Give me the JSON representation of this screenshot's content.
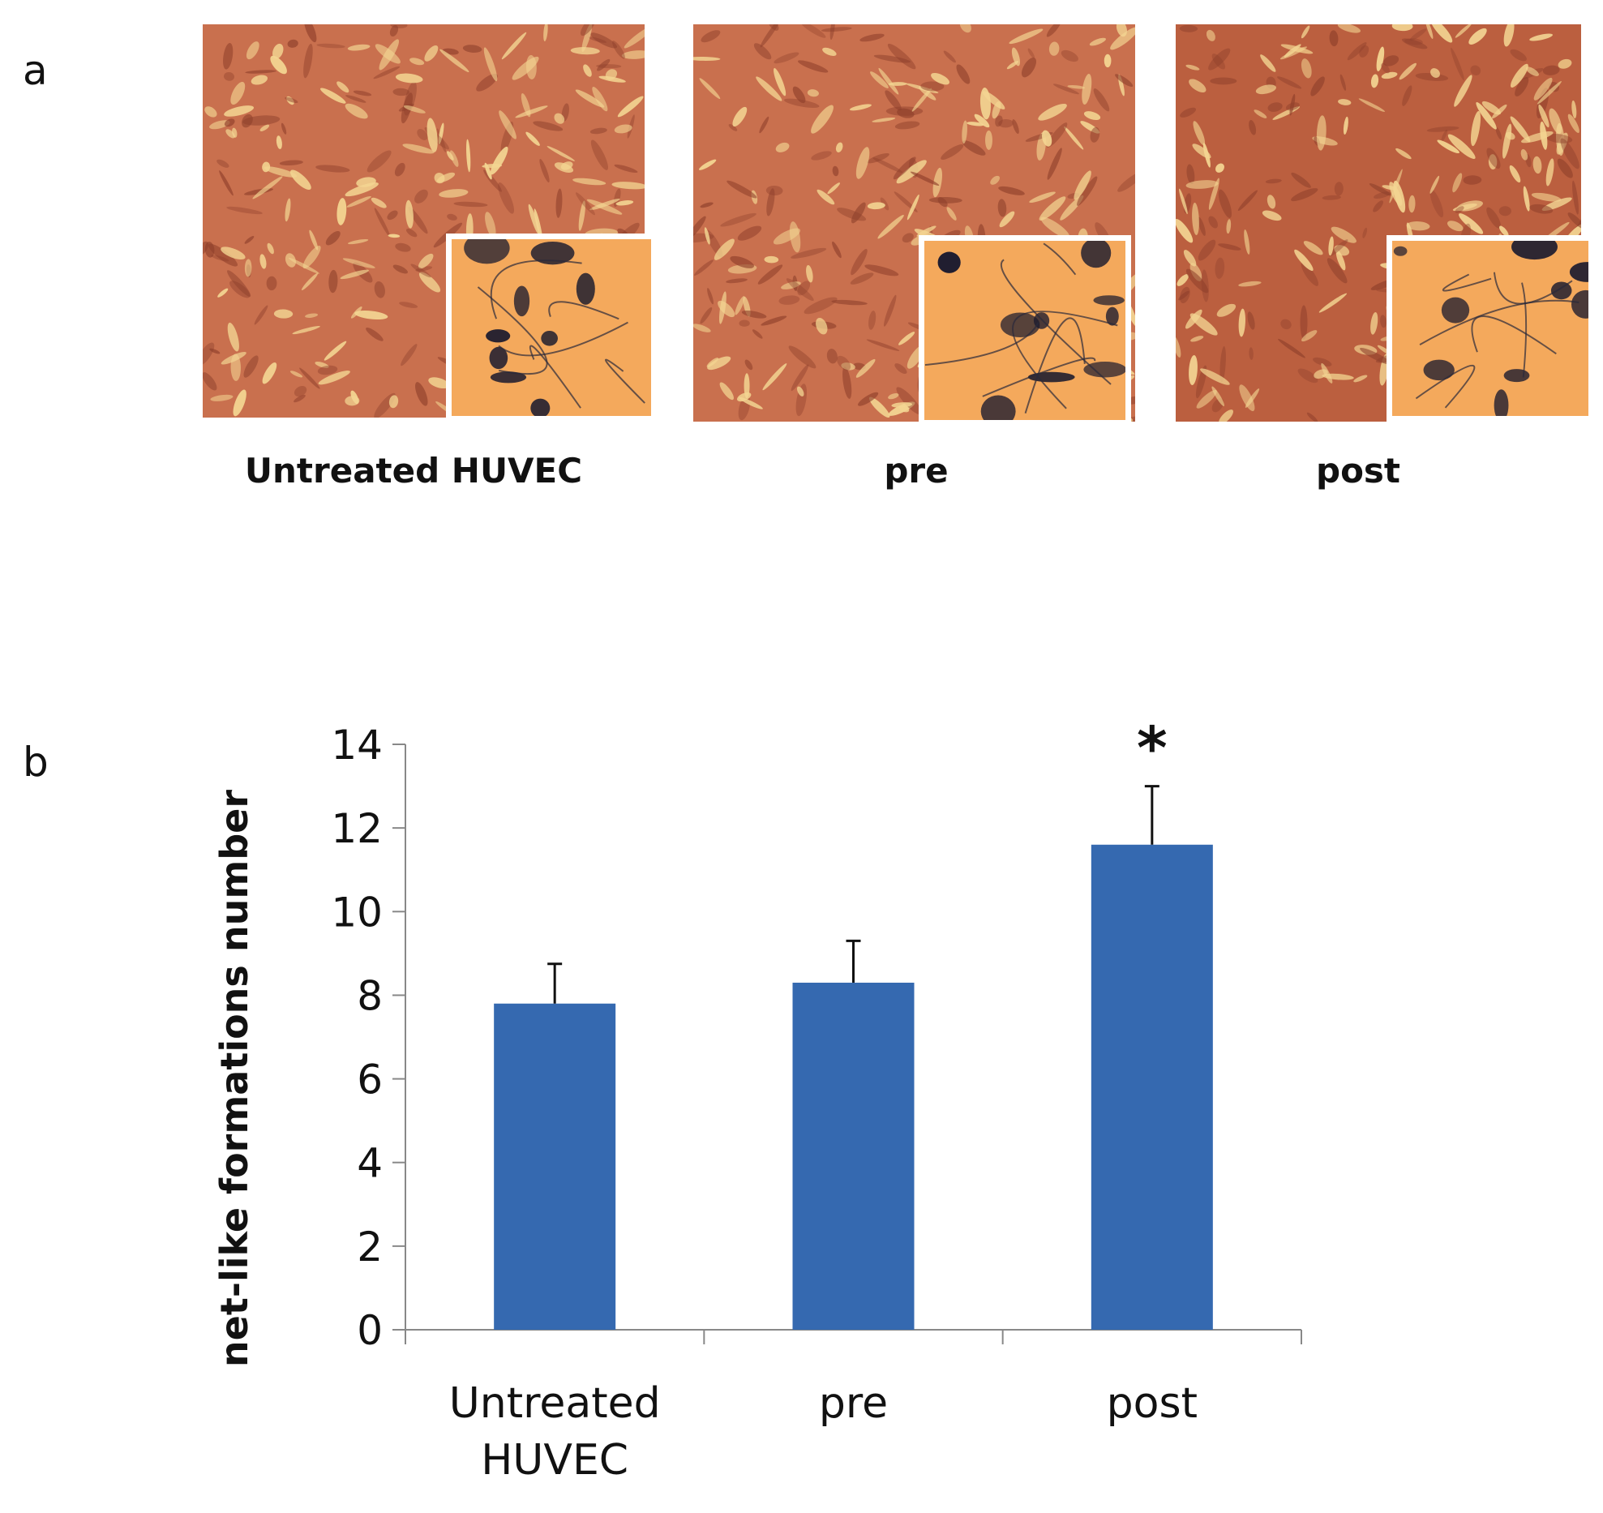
{
  "panels": {
    "a_label": "a",
    "b_label": "b"
  },
  "micrographs": [
    {
      "caption": "Untreated HUVEC"
    },
    {
      "caption": "pre"
    },
    {
      "caption": "post"
    }
  ],
  "colors": {
    "bar": "#3569b0",
    "micro_bg": "#c9704e",
    "micro_cell": "#f3d592",
    "inset_bg": "#f4a95c",
    "inset_dark": "#1a1a2e"
  },
  "chart_data": {
    "type": "bar",
    "ylabel": "net-like formations number",
    "ylim": [
      0,
      14
    ],
    "yticks": [
      "0",
      "2",
      "4",
      "6",
      "8",
      "10",
      "12",
      "14"
    ],
    "categories": [
      {
        "line1": "Untreated",
        "line2": "HUVEC"
      },
      {
        "line1": "pre",
        "line2": ""
      },
      {
        "line1": "post",
        "line2": ""
      }
    ],
    "values": [
      7.8,
      8.3,
      11.6
    ],
    "error": [
      0.95,
      1.0,
      1.4
    ],
    "annotations": [
      "",
      "",
      "*"
    ],
    "grid": false,
    "legend": "none"
  }
}
